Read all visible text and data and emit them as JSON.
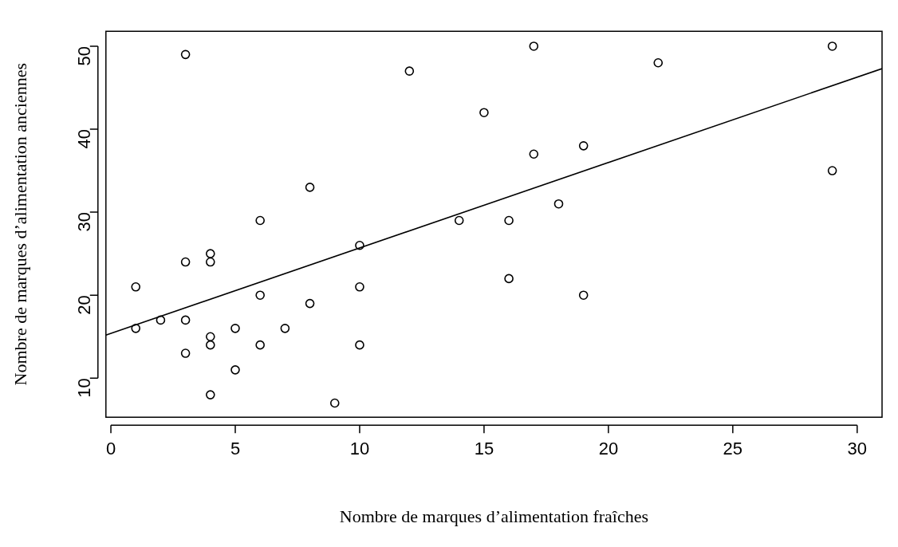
{
  "chart_data": {
    "type": "scatter",
    "xlabel": "Nombre de marques d’alimentation fraîches",
    "ylabel": "Nombre de marques d’alimentation anciennes",
    "xlim": [
      -0.2,
      31
    ],
    "ylim": [
      5.3,
      51.8
    ],
    "xticks": [
      0,
      5,
      10,
      15,
      20,
      25,
      30
    ],
    "yticks": [
      10,
      20,
      30,
      40,
      50
    ],
    "grid": false,
    "legend": false,
    "marker": "circle",
    "series": [
      {
        "color": "#000000",
        "x": [
          1,
          1,
          2,
          3,
          3,
          3,
          3,
          4,
          4,
          4,
          4,
          4,
          5,
          5,
          6,
          6,
          6,
          7,
          8,
          8,
          9,
          10,
          10,
          10,
          12,
          14,
          15,
          16,
          16,
          17,
          17,
          18,
          19,
          19,
          22,
          29,
          29
        ],
        "values": [
          16,
          21,
          17,
          49,
          24,
          17,
          13,
          25,
          24,
          15,
          14,
          8,
          16,
          11,
          29,
          20,
          14,
          16,
          33,
          19,
          7,
          26,
          21,
          14,
          47,
          29,
          42,
          29,
          22,
          50,
          37,
          31,
          38,
          20,
          48,
          50,
          35
        ]
      },
      {
        "type": "line",
        "color": "#000000",
        "marker": "none",
        "line_style": "solid",
        "x": [
          -0.2,
          31
        ],
        "values": [
          15.2,
          47.3
        ]
      }
    ]
  }
}
